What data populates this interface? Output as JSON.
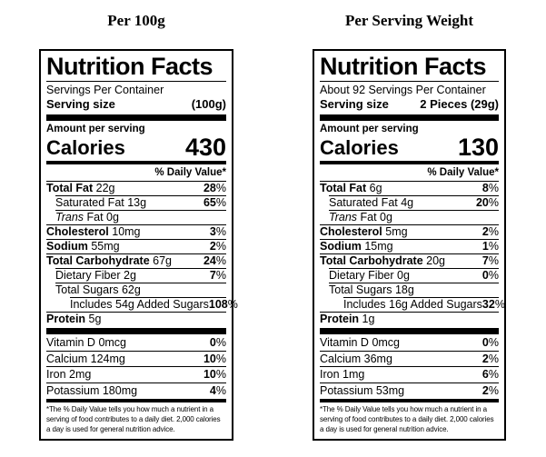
{
  "colors": {
    "text": "#000000",
    "background": "#ffffff",
    "rule": "#000000"
  },
  "columns": [
    {
      "title": "Per 100g",
      "label": {
        "heading": "Nutrition Facts",
        "servings_line": "Servings Per Container",
        "serving_size_label": "Serving size",
        "serving_size_value": "(100g)",
        "amount_per_serving": "Amount per serving",
        "calories_label": "Calories",
        "calories_value": "430",
        "daily_value_header": "% Daily Value*",
        "nutrients": [
          {
            "name": "Total Fat",
            "amount": "22g",
            "dv": "28",
            "bold": true,
            "indent": 0
          },
          {
            "name": "Saturated Fat",
            "amount": "13g",
            "dv": "65",
            "bold": false,
            "indent": 1
          },
          {
            "italic_prefix": "Trans",
            "name": " Fat",
            "amount": "0g",
            "dv": "",
            "bold": false,
            "indent": 1
          },
          {
            "name": "Cholesterol",
            "amount": "10mg",
            "dv": "3",
            "bold": true,
            "indent": 0
          },
          {
            "name": "Sodium",
            "amount": "55mg",
            "dv": "2",
            "bold": true,
            "indent": 0
          },
          {
            "name": "Total Carbohydrate",
            "amount": "67g",
            "dv": "24",
            "bold": true,
            "indent": 0
          },
          {
            "name": "Dietary Fiber",
            "amount": "2g",
            "dv": "7",
            "bold": false,
            "indent": 1
          },
          {
            "name": "Total Sugars",
            "amount": "62g",
            "dv": "",
            "bold": false,
            "indent": 1
          },
          {
            "name": "Includes 54g Added Sugars",
            "amount": "",
            "dv": "108",
            "bold": false,
            "indent": 2
          },
          {
            "name": "Protein",
            "amount": "5g",
            "dv": "",
            "bold": true,
            "indent": 0
          }
        ],
        "vitamins": [
          {
            "name": "Vitamin D",
            "amount": "0mcg",
            "dv": "0",
            "bold": false,
            "indent": 0
          },
          {
            "name": "Calcium",
            "amount": "124mg",
            "dv": "10",
            "bold": false,
            "indent": 0
          },
          {
            "name": "Iron",
            "amount": "2mg",
            "dv": "10",
            "bold": false,
            "indent": 0
          },
          {
            "name": "Potassium",
            "amount": "180mg",
            "dv": "4",
            "bold": false,
            "indent": 0
          }
        ],
        "footnote": "*The % Daily Value tells you how much a nutrient in a serving of food contributes to a daily diet. 2,000 calories a day is used for general nutrition advice."
      }
    },
    {
      "title": "Per Serving Weight",
      "label": {
        "heading": "Nutrition Facts",
        "servings_line": "About 92 Servings Per Container",
        "serving_size_label": "Serving size",
        "serving_size_value": "2 Pieces (29g)",
        "amount_per_serving": "Amount per serving",
        "calories_label": "Calories",
        "calories_value": "130",
        "daily_value_header": "% Daily Value*",
        "nutrients": [
          {
            "name": "Total Fat",
            "amount": "6g",
            "dv": "8",
            "bold": true,
            "indent": 0
          },
          {
            "name": "Saturated Fat",
            "amount": "4g",
            "dv": "20",
            "bold": false,
            "indent": 1
          },
          {
            "italic_prefix": "Trans",
            "name": " Fat",
            "amount": "0g",
            "dv": "",
            "bold": false,
            "indent": 1
          },
          {
            "name": "Cholesterol",
            "amount": "5mg",
            "dv": "2",
            "bold": true,
            "indent": 0
          },
          {
            "name": "Sodium",
            "amount": "15mg",
            "dv": "1",
            "bold": true,
            "indent": 0
          },
          {
            "name": "Total Carbohydrate",
            "amount": "20g",
            "dv": "7",
            "bold": true,
            "indent": 0
          },
          {
            "name": "Dietary Fiber",
            "amount": "0g",
            "dv": "0",
            "bold": false,
            "indent": 1
          },
          {
            "name": "Total Sugars",
            "amount": "18g",
            "dv": "",
            "bold": false,
            "indent": 1
          },
          {
            "name": "Includes 16g Added Sugars",
            "amount": "",
            "dv": "32",
            "bold": false,
            "indent": 2
          },
          {
            "name": "Protein",
            "amount": "1g",
            "dv": "",
            "bold": true,
            "indent": 0
          }
        ],
        "vitamins": [
          {
            "name": "Vitamin D",
            "amount": "0mcg",
            "dv": "0",
            "bold": false,
            "indent": 0
          },
          {
            "name": "Calcium",
            "amount": "36mg",
            "dv": "2",
            "bold": false,
            "indent": 0
          },
          {
            "name": "Iron",
            "amount": "1mg",
            "dv": "6",
            "bold": false,
            "indent": 0
          },
          {
            "name": "Potassium",
            "amount": "53mg",
            "dv": "2",
            "bold": false,
            "indent": 0
          }
        ],
        "footnote": "*The % Daily Value tells you how much a nutrient in a serving of food contributes to a daily diet. 2,000 calories a day is used for general nutrition advice."
      }
    }
  ]
}
